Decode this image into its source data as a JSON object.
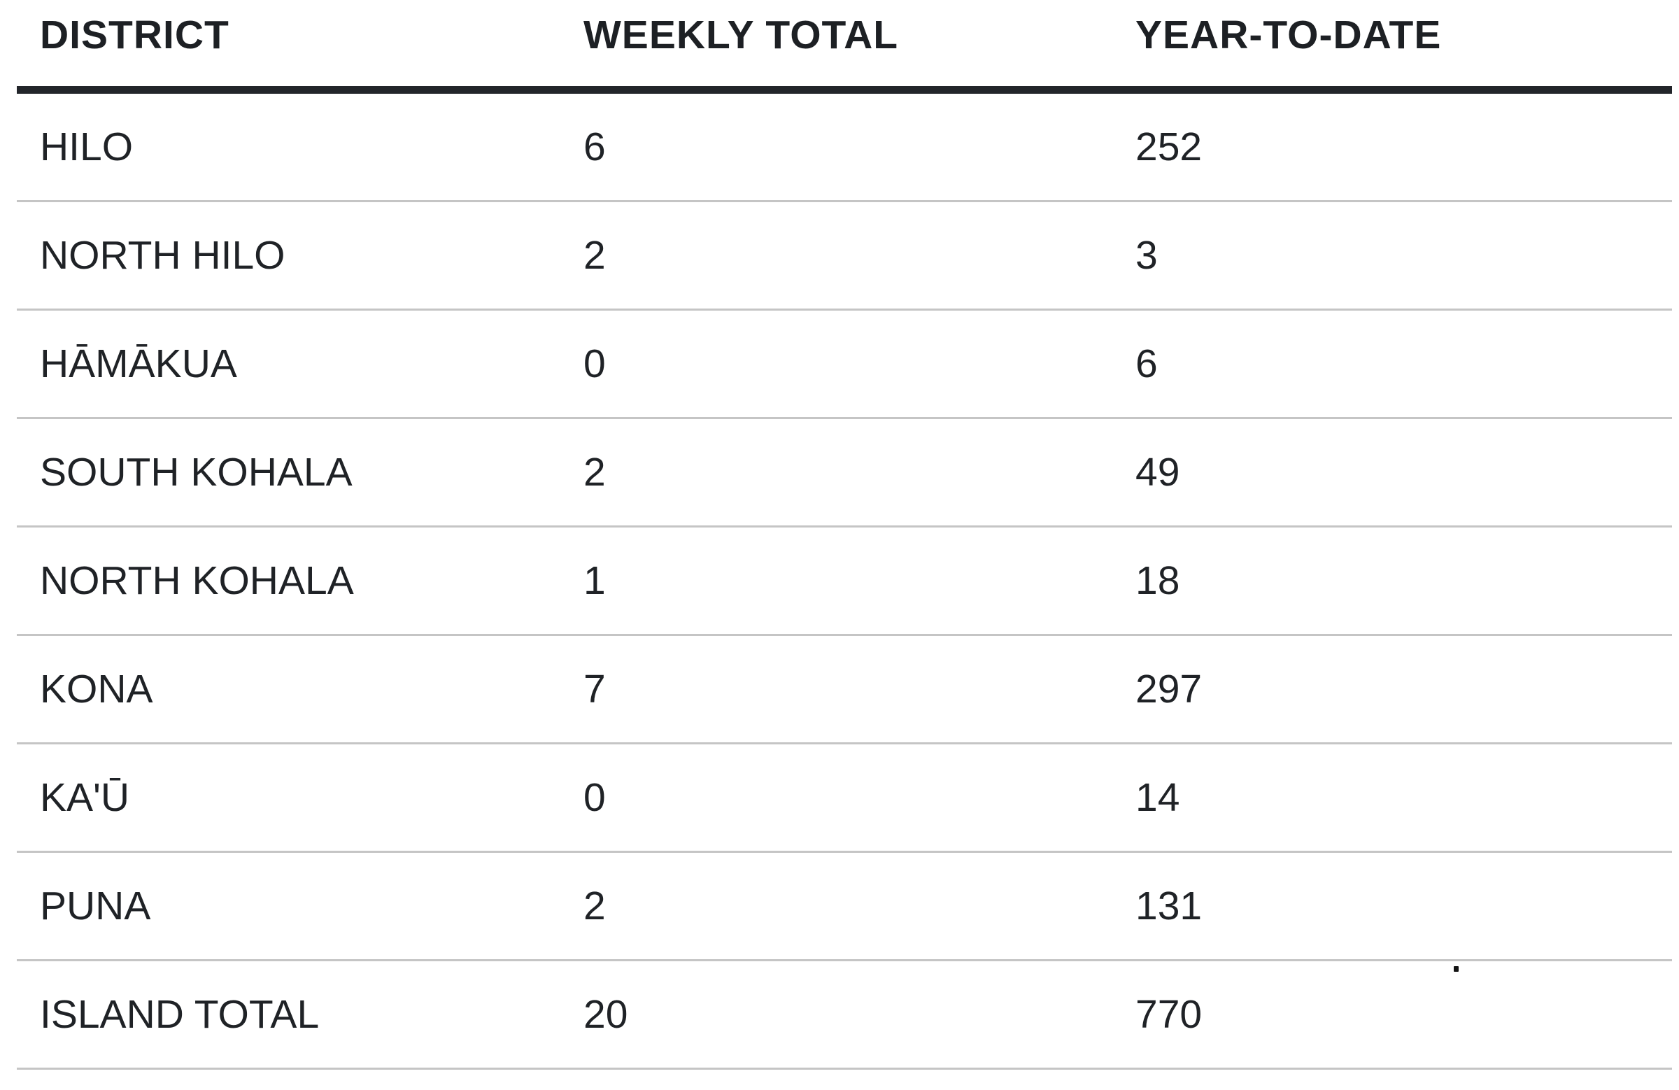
{
  "table": {
    "columns": [
      "DISTRICT",
      "WEEKLY TOTAL",
      "YEAR-TO-DATE"
    ],
    "rows": [
      {
        "district": "HILO",
        "weekly_total": "6",
        "year_to_date": "252"
      },
      {
        "district": "NORTH HILO",
        "weekly_total": "2",
        "year_to_date": "3"
      },
      {
        "district": "HĀMĀKUA",
        "weekly_total": "0",
        "year_to_date": "6"
      },
      {
        "district": "SOUTH KOHALA",
        "weekly_total": "2",
        "year_to_date": "49"
      },
      {
        "district": "NORTH KOHALA",
        "weekly_total": "1",
        "year_to_date": "18"
      },
      {
        "district": "KONA",
        "weekly_total": "7",
        "year_to_date": "297"
      },
      {
        "district": "KA'Ū",
        "weekly_total": "0",
        "year_to_date": "14"
      },
      {
        "district": "PUNA",
        "weekly_total": "2",
        "year_to_date": "131"
      },
      {
        "district": "ISLAND TOTAL",
        "weekly_total": "20",
        "year_to_date": "770"
      }
    ],
    "artifact_dot": "."
  },
  "chart_data": {
    "type": "table",
    "title": "",
    "columns": [
      "DISTRICT",
      "WEEKLY TOTAL",
      "YEAR-TO-DATE"
    ],
    "categories": [
      "HILO",
      "NORTH HILO",
      "HĀMĀKUA",
      "SOUTH KOHALA",
      "NORTH KOHALA",
      "KONA",
      "KA'Ū",
      "PUNA",
      "ISLAND TOTAL"
    ],
    "series": [
      {
        "name": "WEEKLY TOTAL",
        "values": [
          6,
          2,
          0,
          2,
          1,
          7,
          0,
          2,
          20
        ]
      },
      {
        "name": "YEAR-TO-DATE",
        "values": [
          252,
          3,
          6,
          49,
          18,
          297,
          14,
          131,
          770
        ]
      }
    ],
    "layout": {
      "grid": "horizontal-row-dividers",
      "header_rule": "thick-dark",
      "alignment": "left"
    }
  },
  "colors": {
    "background": "#ffffff",
    "text": "#1f2226",
    "header_rule": "#22252a",
    "row_divider": "#c5c5c5"
  }
}
